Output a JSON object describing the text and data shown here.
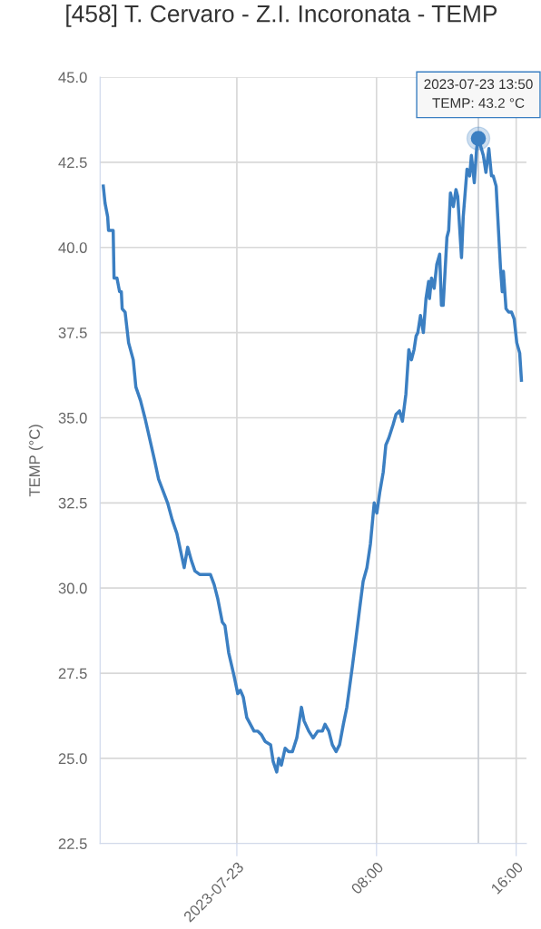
{
  "chart_data": {
    "type": "line",
    "title": "[458] T. Cervaro - Z.I. Incoronata - TEMP",
    "ylabel": "TEMP (°C)",
    "x": [
      "2023-07-22T16:21",
      "2023-07-22T16:27",
      "2023-07-22T16:36",
      "2023-07-22T16:39",
      "2023-07-22T16:55",
      "2023-07-22T16:58",
      "2023-07-22T17:08",
      "2023-07-22T17:17",
      "2023-07-22T17:23",
      "2023-07-22T17:26",
      "2023-07-22T17:36",
      "2023-07-22T17:48",
      "2023-07-22T18:04",
      "2023-07-22T18:13",
      "2023-07-22T18:29",
      "2023-07-22T18:44",
      "2023-07-22T19:16",
      "2023-07-22T19:31",
      "2023-07-22T20:02",
      "2023-07-22T20:18",
      "2023-07-22T20:34",
      "2023-07-22T20:59",
      "2023-07-22T21:11",
      "2023-07-22T21:24",
      "2023-07-22T21:36",
      "2023-07-22T21:52",
      "2023-07-22T22:07",
      "2023-07-22T22:17",
      "2023-07-22T22:29",
      "2023-07-22T22:42",
      "2023-07-22T22:54",
      "2023-07-22T23:10",
      "2023-07-22T23:19",
      "2023-07-22T23:32",
      "2023-07-22T23:51",
      "2023-07-23T00:03",
      "2023-07-23T00:12",
      "2023-07-23T00:22",
      "2023-07-23T00:34",
      "2023-07-23T00:59",
      "2023-07-23T01:12",
      "2023-07-23T01:24",
      "2023-07-23T01:37",
      "2023-07-23T01:56",
      "2023-07-23T02:05",
      "2023-07-23T02:17",
      "2023-07-23T02:24",
      "2023-07-23T02:33",
      "2023-07-23T02:46",
      "2023-07-23T02:58",
      "2023-07-23T03:11",
      "2023-07-23T03:26",
      "2023-07-23T03:42",
      "2023-07-23T03:51",
      "2023-07-23T04:07",
      "2023-07-23T04:22",
      "2023-07-23T04:38",
      "2023-07-23T04:54",
      "2023-07-23T05:03",
      "2023-07-23T05:16",
      "2023-07-23T05:28",
      "2023-07-23T05:41",
      "2023-07-23T05:53",
      "2023-07-23T06:06",
      "2023-07-23T06:18",
      "2023-07-23T06:37",
      "2023-07-23T06:49",
      "2023-07-23T07:02",
      "2023-07-23T07:14",
      "2023-07-23T07:27",
      "2023-07-23T07:39",
      "2023-07-23T07:52",
      "2023-07-23T08:01",
      "2023-07-23T08:11",
      "2023-07-23T08:23",
      "2023-07-23T08:32",
      "2023-07-23T08:42",
      "2023-07-23T08:57",
      "2023-07-23T09:07",
      "2023-07-23T09:19",
      "2023-07-23T09:29",
      "2023-07-23T09:41",
      "2023-07-23T09:51",
      "2023-07-23T10:00",
      "2023-07-23T10:09",
      "2023-07-23T10:16",
      "2023-07-23T10:22",
      "2023-07-23T10:31",
      "2023-07-23T10:41",
      "2023-07-23T10:50",
      "2023-07-23T10:59",
      "2023-07-23T11:02",
      "2023-07-23T11:09",
      "2023-07-23T11:18",
      "2023-07-23T11:27",
      "2023-07-23T11:37",
      "2023-07-23T11:43",
      "2023-07-23T11:49",
      "2023-07-23T12:02",
      "2023-07-23T12:08",
      "2023-07-23T12:14",
      "2023-07-23T12:24",
      "2023-07-23T12:33",
      "2023-07-23T12:39",
      "2023-07-23T12:52",
      "2023-07-23T12:58",
      "2023-07-23T13:11",
      "2023-07-23T13:20",
      "2023-07-23T13:26",
      "2023-07-23T13:36",
      "2023-07-23T13:44",
      "2023-07-23T13:50",
      "2023-07-23T14:07",
      "2023-07-23T14:16",
      "2023-07-23T14:26",
      "2023-07-23T14:35",
      "2023-07-23T14:41",
      "2023-07-23T14:51",
      "2023-07-23T15:06",
      "2023-07-23T15:12",
      "2023-07-23T15:16",
      "2023-07-23T15:25",
      "2023-07-23T15:34",
      "2023-07-23T15:44",
      "2023-07-23T15:53",
      "2023-07-23T16:02",
      "2023-07-23T16:12",
      "2023-07-23T16:18"
    ],
    "series": [
      {
        "color": "#3b7fc2",
        "values": [
          41.8,
          41.3,
          40.9,
          40.5,
          40.5,
          39.1,
          39.1,
          38.7,
          38.7,
          38.2,
          38.1,
          37.2,
          36.7,
          35.9,
          35.5,
          35.0,
          33.8,
          33.2,
          32.5,
          32.0,
          31.6,
          30.6,
          31.2,
          30.8,
          30.5,
          30.4,
          30.4,
          30.4,
          30.4,
          30.1,
          29.7,
          29.0,
          28.9,
          28.1,
          27.4,
          26.9,
          27.0,
          26.8,
          26.2,
          25.8,
          25.8,
          25.7,
          25.5,
          25.4,
          24.9,
          24.6,
          25.0,
          24.8,
          25.3,
          25.2,
          25.2,
          25.6,
          26.5,
          26.1,
          25.8,
          25.6,
          25.8,
          25.8,
          26.0,
          25.8,
          25.4,
          25.2,
          25.4,
          26.0,
          26.5,
          27.7,
          28.5,
          29.4,
          30.2,
          30.6,
          31.3,
          32.5,
          32.2,
          32.8,
          33.4,
          34.2,
          34.4,
          34.8,
          35.1,
          35.2,
          34.9,
          35.7,
          37.0,
          36.7,
          37.0,
          37.4,
          37.5,
          38.0,
          37.5,
          38.5,
          39.0,
          38.5,
          39.1,
          38.8,
          39.5,
          39.8,
          38.3,
          38.3,
          40.3,
          40.5,
          41.6,
          41.2,
          41.7,
          41.5,
          39.7,
          40.9,
          42.3,
          42.1,
          42.7,
          41.9,
          42.9,
          43.2,
          42.7,
          42.2,
          42.9,
          42.1,
          42.1,
          41.8,
          39.4,
          38.7,
          39.3,
          38.2,
          38.1,
          38.1,
          37.9,
          37.2,
          36.9,
          36.1
        ]
      }
    ],
    "xlim": [
      "2023-07-22T16:10",
      "2023-07-23T16:35"
    ],
    "xticks": [
      {
        "value": "2023-07-23T00:00",
        "label": "2023-07-23"
      },
      {
        "value": "2023-07-23T08:00",
        "label": "08:00"
      },
      {
        "value": "2023-07-23T16:00",
        "label": "16:00"
      }
    ],
    "ylim": [
      22.5,
      45.0
    ],
    "yticks": [
      {
        "value": 22.5,
        "label": "22.5"
      },
      {
        "value": 25,
        "label": "25.0"
      },
      {
        "value": 27.5,
        "label": "27.5"
      },
      {
        "value": 30,
        "label": "30.0"
      },
      {
        "value": 32.5,
        "label": "32.5"
      },
      {
        "value": 35,
        "label": "35.0"
      },
      {
        "value": 37.5,
        "label": "37.5"
      },
      {
        "value": 40,
        "label": "40.0"
      },
      {
        "value": 42.5,
        "label": "42.5"
      },
      {
        "value": 45,
        "label": "45.0"
      }
    ],
    "ref_lines": [
      {
        "axis": "x",
        "value": "2023-07-23T13:50",
        "color": "#c8ccd4"
      }
    ],
    "annotations": [
      {
        "text": "2023-07-23 13:50\nTEMP: 43.2 °C",
        "x": "2023-07-23T13:50",
        "y": 43.2
      }
    ],
    "grid": true,
    "legend": false,
    "marker": "none",
    "line_style": "solid"
  }
}
